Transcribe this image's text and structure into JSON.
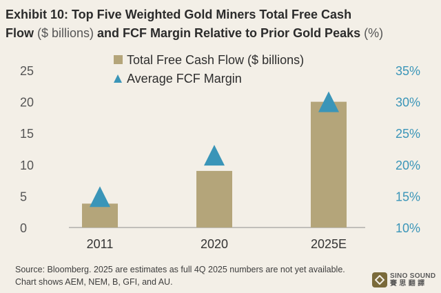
{
  "title": {
    "line1": "Exhibit 10: Top Five Weighted Gold Miners Total Free Cash",
    "line2_bold_a": "Flow",
    "line2_light_a": " ($ billions) ",
    "line2_bold_b": "and FCF Margin Relative to Prior Gold Peaks",
    "line2_light_b": " (%)"
  },
  "chart_data": {
    "type": "bar",
    "categories": [
      "2011",
      "2020",
      "2025E"
    ],
    "series": [
      {
        "name": "Total Free Cash Flow ($ billions)",
        "kind": "bar",
        "axis": "left",
        "color": "#b4a57a",
        "values": [
          3.8,
          9.0,
          20.0
        ]
      },
      {
        "name": "Average FCF Margin",
        "kind": "marker-triangle",
        "axis": "right",
        "color": "#3a95b8",
        "values": [
          14.9,
          21.5,
          30.0
        ]
      }
    ],
    "y_left": {
      "min": 0,
      "max": 25,
      "ticks": [
        "0",
        "5",
        "10",
        "15",
        "20",
        "25"
      ]
    },
    "y_right": {
      "min": 10,
      "max": 35,
      "ticks": [
        "10%",
        "15%",
        "20%",
        "25%",
        "30%",
        "35%"
      ],
      "color": "#3a95b8"
    },
    "legend": {
      "placement": "top-center"
    },
    "grid": false
  },
  "source": {
    "line1": "Source: Bloomberg. 2025 are estimates as full 4Q 2025 numbers are not yet available.",
    "line2": "Chart shows AEM, NEM, B, GFI, and AU."
  },
  "watermark": {
    "line1": "SINO SOUND",
    "line2": "賽 思 翻 譯"
  }
}
